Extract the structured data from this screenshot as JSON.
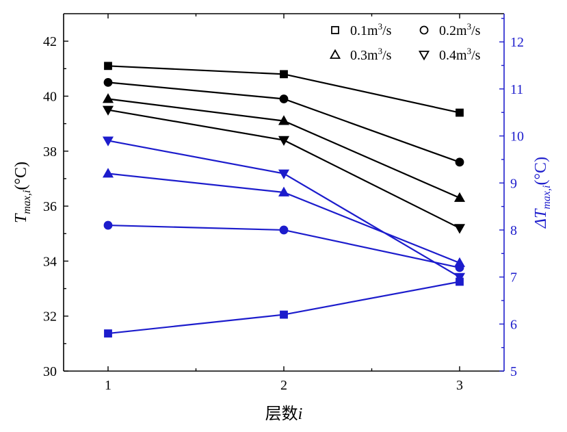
{
  "chart_data": {
    "type": "line",
    "x": [
      1,
      2,
      3
    ],
    "xlabel": {
      "main": "层数",
      "var": "i"
    },
    "ylabel_left": {
      "base": "T",
      "sub": "max,i",
      "unit": "(°C)"
    },
    "ylabel_right": {
      "prefix": "ΔT",
      "sub": "max,i",
      "unit": "(°C)"
    },
    "ylim_left": [
      30,
      43
    ],
    "ylim_right": [
      5,
      12.6
    ],
    "left_ticks": [
      "30",
      "32",
      "34",
      "36",
      "38",
      "40",
      "42"
    ],
    "right_ticks": [
      "5",
      "6",
      "7",
      "8",
      "9",
      "10",
      "11",
      "12"
    ],
    "x_ticks": [
      "1",
      "2",
      "3"
    ],
    "legend": [
      {
        "marker": "square",
        "text": "0.1m",
        "sup": "3",
        "tail": "/s"
      },
      {
        "marker": "circle",
        "text": "0.2m",
        "sup": "3",
        "tail": "/s"
      },
      {
        "marker": "triangle-up",
        "text": "0.3m",
        "sup": "3",
        "tail": "/s"
      },
      {
        "marker": "triangle-down",
        "text": "0.4m",
        "sup": "3",
        "tail": "/s"
      }
    ],
    "series_left": [
      {
        "marker": "square",
        "values": [
          41.1,
          40.8,
          39.4
        ]
      },
      {
        "marker": "circle",
        "values": [
          40.5,
          39.9,
          37.6
        ]
      },
      {
        "marker": "triangle-up",
        "values": [
          39.9,
          39.1,
          36.3
        ]
      },
      {
        "marker": "triangle-down",
        "values": [
          39.5,
          38.4,
          35.2
        ]
      }
    ],
    "series_right": [
      {
        "marker": "square",
        "values": [
          5.8,
          6.2,
          6.9
        ]
      },
      {
        "marker": "circle",
        "values": [
          8.1,
          8.0,
          7.2
        ]
      },
      {
        "marker": "triangle-up",
        "values": [
          9.2,
          8.8,
          7.3
        ]
      },
      {
        "marker": "triangle-down",
        "values": [
          9.9,
          9.2,
          7.0
        ]
      }
    ],
    "colors": {
      "left": "#000000",
      "right": "#1c1ccc"
    }
  }
}
